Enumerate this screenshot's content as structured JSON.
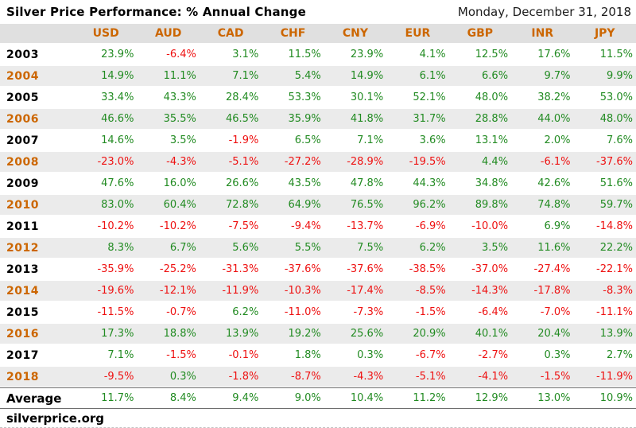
{
  "title": "Silver Price Performance: % Annual Change",
  "date": "Monday, December 31, 2018",
  "footer": "silverprice.org",
  "colors": {
    "orange": "#cc6600",
    "green": "#228b22",
    "red": "#ee1111",
    "stripe": "#ebebeb",
    "header_bg": "#e0e0e0"
  },
  "chart_data": {
    "type": "table",
    "title": "Silver Price Performance: % Annual Change",
    "columns": [
      "USD",
      "AUD",
      "CAD",
      "CHF",
      "CNY",
      "EUR",
      "GBP",
      "INR",
      "JPY"
    ],
    "rows": [
      {
        "year": "2003",
        "values": [
          "23.9%",
          "-6.4%",
          "3.1%",
          "11.5%",
          "23.9%",
          "4.1%",
          "12.5%",
          "17.6%",
          "11.5%"
        ]
      },
      {
        "year": "2004",
        "values": [
          "14.9%",
          "11.1%",
          "7.1%",
          "5.4%",
          "14.9%",
          "6.1%",
          "6.6%",
          "9.7%",
          "9.9%"
        ]
      },
      {
        "year": "2005",
        "values": [
          "33.4%",
          "43.3%",
          "28.4%",
          "53.3%",
          "30.1%",
          "52.1%",
          "48.0%",
          "38.2%",
          "53.0%"
        ]
      },
      {
        "year": "2006",
        "values": [
          "46.6%",
          "35.5%",
          "46.5%",
          "35.9%",
          "41.8%",
          "31.7%",
          "28.8%",
          "44.0%",
          "48.0%"
        ]
      },
      {
        "year": "2007",
        "values": [
          "14.6%",
          "3.5%",
          "-1.9%",
          "6.5%",
          "7.1%",
          "3.6%",
          "13.1%",
          "2.0%",
          "7.6%"
        ]
      },
      {
        "year": "2008",
        "values": [
          "-23.0%",
          "-4.3%",
          "-5.1%",
          "-27.2%",
          "-28.9%",
          "-19.5%",
          "4.4%",
          "-6.1%",
          "-37.6%"
        ]
      },
      {
        "year": "2009",
        "values": [
          "47.6%",
          "16.0%",
          "26.6%",
          "43.5%",
          "47.8%",
          "44.3%",
          "34.8%",
          "42.6%",
          "51.6%"
        ]
      },
      {
        "year": "2010",
        "values": [
          "83.0%",
          "60.4%",
          "72.8%",
          "64.9%",
          "76.5%",
          "96.2%",
          "89.8%",
          "74.8%",
          "59.7%"
        ]
      },
      {
        "year": "2011",
        "values": [
          "-10.2%",
          "-10.2%",
          "-7.5%",
          "-9.4%",
          "-13.7%",
          "-6.9%",
          "-10.0%",
          "6.9%",
          "-14.8%"
        ]
      },
      {
        "year": "2012",
        "values": [
          "8.3%",
          "6.7%",
          "5.6%",
          "5.5%",
          "7.5%",
          "6.2%",
          "3.5%",
          "11.6%",
          "22.2%"
        ]
      },
      {
        "year": "2013",
        "values": [
          "-35.9%",
          "-25.2%",
          "-31.3%",
          "-37.6%",
          "-37.6%",
          "-38.5%",
          "-37.0%",
          "-27.4%",
          "-22.1%"
        ]
      },
      {
        "year": "2014",
        "values": [
          "-19.6%",
          "-12.1%",
          "-11.9%",
          "-10.3%",
          "-17.4%",
          "-8.5%",
          "-14.3%",
          "-17.8%",
          "-8.3%"
        ]
      },
      {
        "year": "2015",
        "values": [
          "-11.5%",
          "-0.7%",
          "6.2%",
          "-11.0%",
          "-7.3%",
          "-1.5%",
          "-6.4%",
          "-7.0%",
          "-11.1%"
        ]
      },
      {
        "year": "2016",
        "values": [
          "17.3%",
          "18.8%",
          "13.9%",
          "19.2%",
          "25.6%",
          "20.9%",
          "40.1%",
          "20.4%",
          "13.9%"
        ]
      },
      {
        "year": "2017",
        "values": [
          "7.1%",
          "-1.5%",
          "-0.1%",
          "1.8%",
          "0.3%",
          "-6.7%",
          "-2.7%",
          "0.3%",
          "2.7%"
        ]
      },
      {
        "year": "2018",
        "values": [
          "-9.5%",
          "0.3%",
          "-1.8%",
          "-8.7%",
          "-4.3%",
          "-5.1%",
          "-4.1%",
          "-1.5%",
          "-11.9%"
        ]
      }
    ],
    "average_row": {
      "label": "Average",
      "values": [
        "11.7%",
        "8.4%",
        "9.4%",
        "9.0%",
        "10.4%",
        "11.2%",
        "12.9%",
        "13.0%",
        "10.9%"
      ]
    },
    "orange_years": [
      "2004",
      "2006",
      "2008",
      "2010",
      "2012",
      "2014",
      "2016",
      "2018"
    ],
    "value_color_rule": "negative=red, positive=green"
  }
}
